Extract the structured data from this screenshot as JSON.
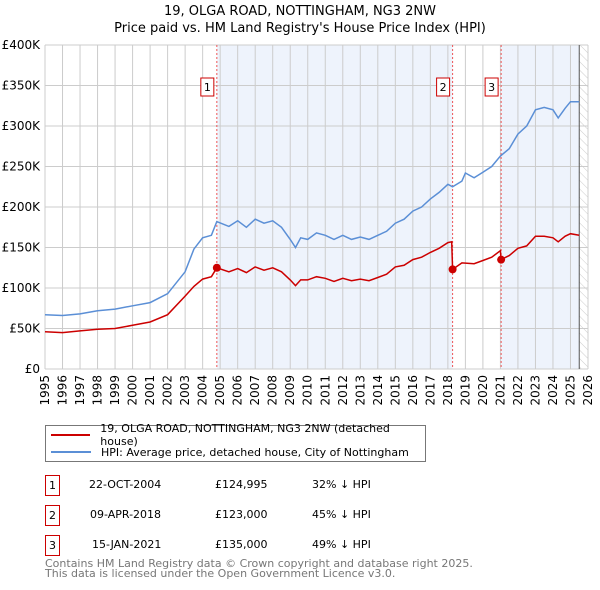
{
  "chart_data": {
    "type": "line",
    "title": "19, OLGA ROAD, NOTTINGHAM, NG3 2NW",
    "subtitle": "Price paid vs. HM Land Registry's House Price Index (HPI)",
    "xlim": [
      1995,
      2026
    ],
    "ylim": [
      0,
      400000
    ],
    "x_ticks": [
      "1995",
      "1996",
      "1997",
      "1998",
      "1999",
      "2000",
      "2001",
      "2002",
      "2003",
      "2004",
      "2005",
      "2006",
      "2007",
      "2008",
      "2009",
      "2010",
      "2011",
      "2012",
      "2013",
      "2014",
      "2015",
      "2016",
      "2017",
      "2018",
      "2019",
      "2020",
      "2021",
      "2022",
      "2023",
      "2024",
      "2025",
      "2026"
    ],
    "y_ticks": [
      {
        "v": 0,
        "label": "£0"
      },
      {
        "v": 50000,
        "label": "£50K"
      },
      {
        "v": 100000,
        "label": "£100K"
      },
      {
        "v": 150000,
        "label": "£150K"
      },
      {
        "v": 200000,
        "label": "£200K"
      },
      {
        "v": 250000,
        "label": "£250K"
      },
      {
        "v": 300000,
        "label": "£300K"
      },
      {
        "v": 350000,
        "label": "£350K"
      },
      {
        "v": 400000,
        "label": "£400K"
      }
    ],
    "grid": true,
    "shaded_ranges": [
      [
        2004.81,
        2018.27
      ],
      [
        2021.04,
        2025.5
      ]
    ],
    "hatched_from": 2025.5,
    "series": [
      {
        "name": "19, OLGA ROAD, NOTTINGHAM, NG3 2NW (detached house)",
        "color": "#cc0000",
        "x": [
          1995,
          1996,
          1997,
          1998,
          1999,
          2000,
          2001,
          2002,
          2003,
          2003.5,
          2004,
          2004.5,
          2004.81,
          2005.5,
          2006,
          2006.5,
          2007,
          2007.5,
          2008,
          2008.5,
          2009,
          2009.3,
          2009.6,
          2010,
          2010.5,
          2011,
          2011.5,
          2012,
          2012.5,
          2013,
          2013.5,
          2014,
          2014.5,
          2015,
          2015.5,
          2016,
          2016.5,
          2017,
          2017.5,
          2018,
          2018.22,
          2018.27,
          2018.8,
          2019.5,
          2020,
          2020.5,
          2021,
          2021.04,
          2021.5,
          2022,
          2022.5,
          2023,
          2023.5,
          2024,
          2024.3,
          2024.7,
          2025,
          2025.5
        ],
        "y": [
          46000,
          45000,
          47000,
          49000,
          50000,
          54000,
          58000,
          67000,
          90000,
          102000,
          111000,
          114000,
          124995,
          120000,
          124000,
          119000,
          126000,
          122000,
          125000,
          120000,
          110000,
          103000,
          110000,
          110000,
          114000,
          112000,
          108000,
          112000,
          109000,
          111000,
          109000,
          113000,
          117000,
          126000,
          128000,
          135000,
          138000,
          144000,
          149000,
          156000,
          157000,
          123000,
          131000,
          130000,
          134000,
          138000,
          146000,
          135000,
          140000,
          149000,
          152000,
          164000,
          164000,
          162000,
          157000,
          164000,
          167000,
          165000
        ]
      },
      {
        "name": "HPI: Average price, detached house, City of Nottingham",
        "color": "#5b8fd6",
        "x": [
          1995,
          1996,
          1997,
          1998,
          1999,
          2000,
          2001,
          2002,
          2003,
          2003.5,
          2004,
          2004.5,
          2004.81,
          2005.5,
          2006,
          2006.5,
          2007,
          2007.5,
          2008,
          2008.5,
          2009,
          2009.3,
          2009.6,
          2010,
          2010.5,
          2011,
          2011.5,
          2012,
          2012.5,
          2013,
          2013.5,
          2014,
          2014.5,
          2015,
          2015.5,
          2016,
          2016.5,
          2017,
          2017.5,
          2018,
          2018.27,
          2018.8,
          2019,
          2019.5,
          2020,
          2020.5,
          2021,
          2021.5,
          2022,
          2022.5,
          2023,
          2023.5,
          2024,
          2024.3,
          2024.7,
          2025,
          2025.5
        ],
        "y": [
          67000,
          66000,
          68000,
          72000,
          74000,
          78000,
          82000,
          93000,
          120000,
          148000,
          162000,
          165000,
          182000,
          176000,
          183000,
          175000,
          185000,
          180000,
          183000,
          175000,
          160000,
          150000,
          162000,
          160000,
          168000,
          165000,
          160000,
          165000,
          160000,
          163000,
          160000,
          165000,
          170000,
          180000,
          185000,
          195000,
          200000,
          210000,
          218000,
          228000,
          225000,
          232000,
          242000,
          236000,
          243000,
          250000,
          263000,
          272000,
          290000,
          300000,
          320000,
          323000,
          320000,
          310000,
          322000,
          330000,
          330000
        ]
      }
    ],
    "markers": [
      {
        "label": "1",
        "x": 2004.81,
        "y": 124995
      },
      {
        "label": "2",
        "x": 2018.27,
        "y": 123000
      },
      {
        "label": "3",
        "x": 2021.04,
        "y": 135000
      }
    ]
  },
  "legend": {
    "items": [
      {
        "label": "19, OLGA ROAD, NOTTINGHAM, NG3 2NW (detached house)",
        "color": "#cc0000"
      },
      {
        "label": "HPI: Average price, detached house, City of Nottingham",
        "color": "#5b8fd6"
      }
    ]
  },
  "transactions": [
    {
      "num": "1",
      "date": "22-OCT-2004",
      "price": "£124,995",
      "hpi": "32% ↓ HPI"
    },
    {
      "num": "2",
      "date": "09-APR-2018",
      "price": "£123,000",
      "hpi": "45% ↓ HPI"
    },
    {
      "num": "3",
      "date": "15-JAN-2021",
      "price": "£135,000",
      "hpi": "49% ↓ HPI"
    }
  ],
  "footer": {
    "line1": "Contains HM Land Registry data © Crown copyright and database right 2025.",
    "line2": "This data is licensed under the Open Government Licence v3.0."
  }
}
